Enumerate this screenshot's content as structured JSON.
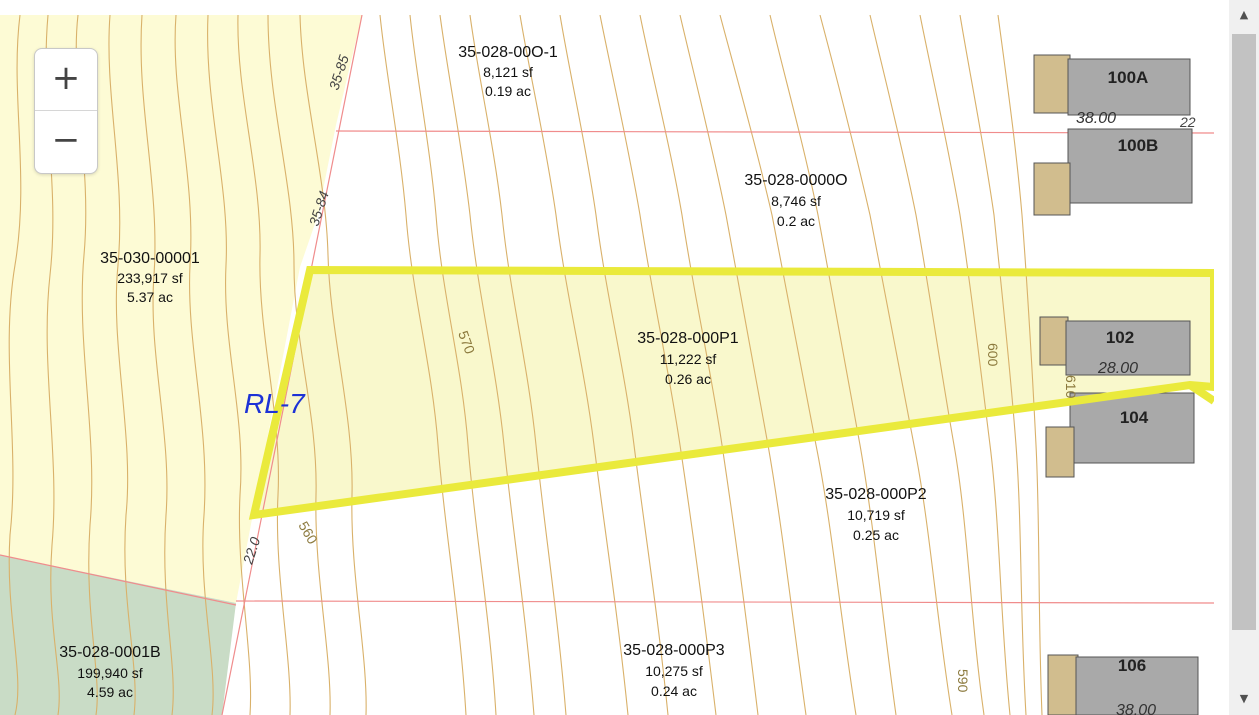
{
  "zoom": {
    "in_label": "+",
    "out_label": "−"
  },
  "scrollbar": {
    "up_label": "▲",
    "down_label": "▼"
  },
  "zoning_label": "RL-7",
  "parcels": [
    {
      "id": "35-028-00O-1",
      "area_sf": "8,121 sf",
      "area_ac": "0.19 ac"
    },
    {
      "id": "35-028-0000O",
      "area_sf": "8,746 sf",
      "area_ac": "0.2 ac"
    },
    {
      "id": "35-030-00001",
      "area_sf": "233,917 sf",
      "area_ac": "5.37 ac"
    },
    {
      "id": "35-028-000P1",
      "area_sf": "11,222 sf",
      "area_ac": "0.26 ac"
    },
    {
      "id": "35-028-000P2",
      "area_sf": "10,719 sf",
      "area_ac": "0.25 ac"
    },
    {
      "id": "35-028-0001B",
      "area_sf": "199,940 sf",
      "area_ac": "4.59 ac"
    },
    {
      "id": "35-028-000P3",
      "area_sf": "10,275 sf",
      "area_ac": "0.24 ac"
    }
  ],
  "buildings": [
    {
      "number": "100A",
      "dim": "38.00"
    },
    {
      "number": "100B",
      "dim": ""
    },
    {
      "number": "102",
      "dim": "28.00"
    },
    {
      "number": "104",
      "dim": ""
    },
    {
      "number": "106",
      "dim": "38.00"
    }
  ],
  "contours": [
    "570",
    "560",
    "600",
    "590",
    "610"
  ],
  "street_dims": [
    "35-85",
    "35-84",
    "22.0",
    "22"
  ],
  "colors": {
    "selected_parcel_outline": "#eaea3c",
    "selected_parcel_fill": "#f8f7c6",
    "residential_fill": "#fdfbd5",
    "open_space_fill": "#c9dcc6",
    "contour_line": "#d9b16a",
    "lot_line": "#f08c8c",
    "building": "#a9a9a9",
    "garage": "#d1bd8e",
    "zoning_text": "#1d32d6"
  }
}
